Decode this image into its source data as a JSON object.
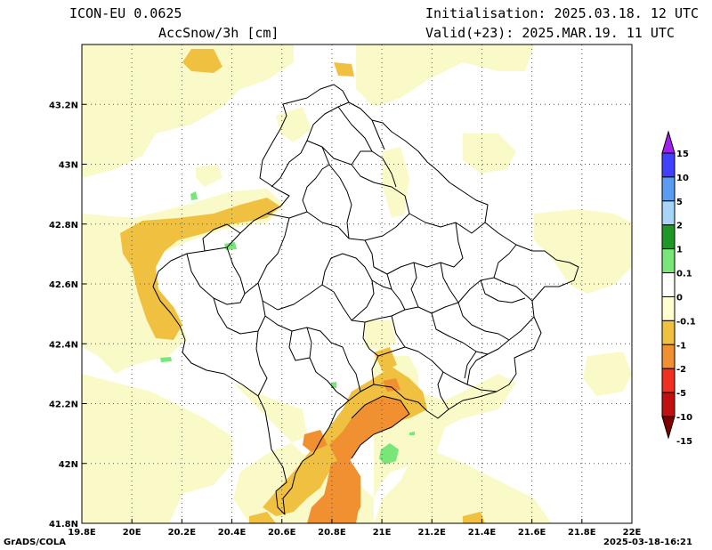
{
  "header": {
    "model": "ICON-EU 0.0625",
    "variable": "AccSnow/3h [cm]",
    "init": "Initialisation: 2025.03.18. 12 UTC",
    "valid": "Valid(+23): 2025.MAR.19. 11 UTC"
  },
  "axes": {
    "lon_ticks": [
      "19.8E",
      "20E",
      "20.2E",
      "20.4E",
      "20.6E",
      "20.8E",
      "21E",
      "21.2E",
      "21.4E",
      "21.6E",
      "21.8E",
      "22E"
    ],
    "lat_ticks": [
      "43.2N",
      "43N",
      "42.8N",
      "42.6N",
      "42.4N",
      "42.2N",
      "42N",
      "41.8N"
    ],
    "lon_range": [
      19.8,
      22.0
    ],
    "lat_range": [
      41.8,
      43.4
    ]
  },
  "colorbar": {
    "labels": [
      "15",
      "10",
      "5",
      "2",
      "1",
      "0.1",
      "0",
      "-0.1",
      "-1",
      "-2",
      "-5",
      "-10",
      "-15"
    ],
    "colors": [
      "#a020f0",
      "#4040ff",
      "#5a9cf0",
      "#a8d4f8",
      "#1e9628",
      "#78e678",
      "#ffffff",
      "#ffffd0",
      "#f0c040",
      "#f09030",
      "#f03020",
      "#c01010",
      "#800000"
    ]
  },
  "palette": {
    "pale_yellow": "#fafac8",
    "gold": "#f0c040",
    "orange": "#f09030",
    "light_green": "#78e678",
    "outline": "#000000"
  },
  "footer": {
    "left": "GrADS/COLA",
    "right": "2025-03-18-16:21"
  }
}
